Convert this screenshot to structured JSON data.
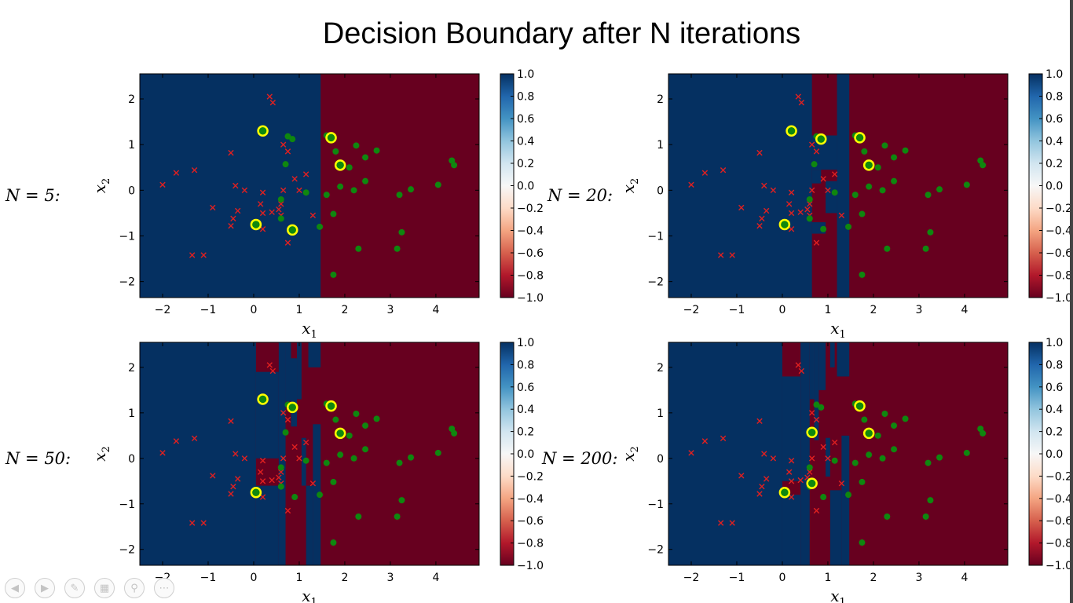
{
  "title": "Decision Boundary after N iterations",
  "colors": {
    "blue_region": "#053061",
    "red_region": "#67001f",
    "class_neg_marker": "#e02020",
    "class_pos_marker": "#0f870f",
    "highlight_ring": "#ffff00"
  },
  "colorbar_ticks": [
    "1.0",
    "0.8",
    "0.6",
    "0.4",
    "0.2",
    "0.0",
    "−0.2",
    "−0.4",
    "−0.6",
    "−0.8",
    "−1.0"
  ],
  "toolbar_icons": [
    "prev-icon",
    "next-icon",
    "pen-icon",
    "slides-icon",
    "zoom-icon",
    "more-icon"
  ],
  "chart_data": [
    {
      "type": "heatmap",
      "label": "N = 5:",
      "xlabel": "x1",
      "ylabel": "x2",
      "xlim": [
        -2.5,
        4.95
      ],
      "ylim": [
        -2.35,
        2.55
      ],
      "xticks": [
        -2,
        -1,
        0,
        1,
        2,
        3,
        4
      ],
      "yticks": [
        -2,
        -1,
        0,
        1,
        2
      ],
      "colorbar": {
        "min": -1.0,
        "max": 1.0,
        "colormap": "RdBu"
      },
      "blue_regions": [
        [
          -2.5,
          1.47,
          -2.35,
          2.55
        ]
      ],
      "highlighted": [
        [
          0.2,
          1.3
        ],
        [
          1.7,
          1.15
        ],
        [
          1.9,
          0.55
        ],
        [
          0.05,
          -0.75
        ],
        [
          0.85,
          -0.87
        ]
      ]
    },
    {
      "type": "heatmap",
      "label": "N = 20:",
      "xlabel": "x1",
      "ylabel": "x2",
      "xlim": [
        -2.5,
        4.95
      ],
      "ylim": [
        -2.35,
        2.55
      ],
      "xticks": [
        -2,
        -1,
        0,
        1,
        2,
        3,
        4
      ],
      "yticks": [
        -2,
        -1,
        0,
        1,
        2
      ],
      "colorbar": {
        "min": -1.0,
        "max": 1.0,
        "colormap": "RdBu"
      },
      "blue_regions": [
        [
          -2.5,
          0.65,
          -2.35,
          2.55
        ],
        [
          1.2,
          1.47,
          -2.35,
          2.55
        ],
        [
          0.65,
          1.2,
          0.45,
          1.2
        ],
        [
          0.65,
          0.85,
          0.15,
          0.45
        ],
        [
          0.65,
          0.95,
          -0.95,
          -0.7
        ],
        [
          0.95,
          1.2,
          -0.5,
          0.2
        ]
      ],
      "highlighted": [
        [
          0.2,
          1.3
        ],
        [
          0.85,
          1.12
        ],
        [
          1.7,
          1.15
        ],
        [
          1.9,
          0.55
        ],
        [
          0.05,
          -0.75
        ]
      ]
    },
    {
      "type": "heatmap",
      "label": "N = 50:",
      "xlabel": "x1",
      "ylabel": "x2",
      "xlim": [
        -2.5,
        4.95
      ],
      "ylim": [
        -2.35,
        2.55
      ],
      "xticks": [
        -2,
        -1,
        0,
        1,
        2,
        3,
        4
      ],
      "yticks": [
        -2,
        -1,
        0,
        1,
        2
      ],
      "colorbar": {
        "min": -1.0,
        "max": 1.0,
        "colormap": "RdBu"
      },
      "blue_regions": [
        [
          -2.5,
          0.05,
          -2.35,
          2.55
        ],
        [
          0.05,
          0.55,
          0.0,
          1.9
        ],
        [
          0.05,
          0.55,
          -2.35,
          -0.6
        ],
        [
          0.55,
          0.7,
          -2.35,
          2.55
        ],
        [
          0.7,
          0.82,
          1.25,
          2.55
        ],
        [
          0.82,
          0.95,
          0.7,
          2.2
        ],
        [
          0.95,
          1.05,
          1.3,
          2.55
        ],
        [
          1.05,
          1.15,
          -0.6,
          0.45
        ],
        [
          1.15,
          1.3,
          -2.35,
          -0.6
        ],
        [
          1.3,
          1.47,
          -2.35,
          0.75
        ],
        [
          1.2,
          1.47,
          2.0,
          2.55
        ]
      ],
      "highlighted": [
        [
          0.2,
          1.3
        ],
        [
          0.85,
          1.12
        ],
        [
          1.7,
          1.15
        ],
        [
          1.9,
          0.55
        ],
        [
          0.05,
          -0.75
        ]
      ]
    },
    {
      "type": "heatmap",
      "label": "N = 200:",
      "xlabel": "x1",
      "ylabel": "x2",
      "xlim": [
        -2.5,
        4.95
      ],
      "ylim": [
        -2.35,
        2.55
      ],
      "xticks": [
        -2,
        -1,
        0,
        1,
        2,
        3,
        4
      ],
      "yticks": [
        -2,
        -1,
        0,
        1,
        2
      ],
      "colorbar": {
        "min": -1.0,
        "max": 1.0,
        "colormap": "RdBu"
      },
      "blue_regions": [
        [
          -2.5,
          0.0,
          -2.35,
          2.55
        ],
        [
          0.0,
          0.4,
          -0.5,
          1.8
        ],
        [
          0.0,
          0.4,
          -2.35,
          -0.8
        ],
        [
          0.4,
          0.6,
          -2.35,
          2.55
        ],
        [
          0.6,
          0.7,
          1.3,
          2.55
        ],
        [
          0.7,
          0.8,
          0.4,
          2.55
        ],
        [
          0.8,
          0.95,
          1.5,
          2.55
        ],
        [
          0.95,
          1.05,
          -0.4,
          0.45
        ],
        [
          1.05,
          1.15,
          2.0,
          2.55
        ],
        [
          1.2,
          1.47,
          1.8,
          2.55
        ],
        [
          1.05,
          1.3,
          -2.35,
          -0.7
        ],
        [
          1.3,
          1.47,
          -2.35,
          0.5
        ]
      ],
      "highlighted": [
        [
          0.65,
          0.57
        ],
        [
          1.7,
          1.15
        ],
        [
          1.9,
          0.55
        ],
        [
          0.65,
          -0.55
        ],
        [
          0.05,
          -0.75
        ]
      ]
    }
  ],
  "class_neg_points": [
    [
      0.35,
      2.05
    ],
    [
      0.42,
      1.92
    ],
    [
      -0.5,
      0.82
    ],
    [
      -1.7,
      0.38
    ],
    [
      -1.3,
      0.44
    ],
    [
      -2.0,
      0.12
    ],
    [
      -0.9,
      -0.38
    ],
    [
      -0.4,
      0.1
    ],
    [
      -0.2,
      0.0
    ],
    [
      0.2,
      -0.05
    ],
    [
      -0.35,
      -0.45
    ],
    [
      -0.45,
      -0.62
    ],
    [
      -0.5,
      -0.78
    ],
    [
      0.15,
      -0.3
    ],
    [
      0.2,
      -0.5
    ],
    [
      0.4,
      -0.48
    ],
    [
      0.6,
      -0.55
    ],
    [
      0.55,
      -0.42
    ],
    [
      0.6,
      -0.3
    ],
    [
      0.65,
      0.0
    ],
    [
      0.75,
      0.85
    ],
    [
      0.65,
      1.0
    ],
    [
      0.9,
      0.25
    ],
    [
      1.0,
      0.0
    ],
    [
      1.15,
      0.35
    ],
    [
      1.3,
      -0.55
    ],
    [
      0.75,
      -1.15
    ],
    [
      0.2,
      -0.85
    ],
    [
      -1.35,
      -1.42
    ],
    [
      -1.1,
      -1.42
    ]
  ],
  "class_pos_points": [
    [
      0.75,
      1.18
    ],
    [
      0.85,
      1.12
    ],
    [
      1.6,
      1.2
    ],
    [
      1.75,
      1.15
    ],
    [
      2.25,
      0.98
    ],
    [
      2.7,
      0.87
    ],
    [
      1.8,
      0.85
    ],
    [
      2.45,
      0.72
    ],
    [
      2.1,
      0.5
    ],
    [
      4.35,
      0.65
    ],
    [
      4.4,
      0.55
    ],
    [
      0.7,
      0.57
    ],
    [
      1.6,
      -0.1
    ],
    [
      1.9,
      0.08
    ],
    [
      2.2,
      0.0
    ],
    [
      2.45,
      0.2
    ],
    [
      3.2,
      -0.1
    ],
    [
      3.45,
      0.02
    ],
    [
      4.05,
      0.12
    ],
    [
      1.15,
      -0.05
    ],
    [
      0.6,
      -0.2
    ],
    [
      0.6,
      -0.62
    ],
    [
      1.75,
      -0.52
    ],
    [
      1.45,
      -0.8
    ],
    [
      3.25,
      -0.92
    ],
    [
      2.3,
      -1.28
    ],
    [
      3.15,
      -1.28
    ],
    [
      1.75,
      -1.85
    ],
    [
      0.9,
      -0.85
    ]
  ]
}
